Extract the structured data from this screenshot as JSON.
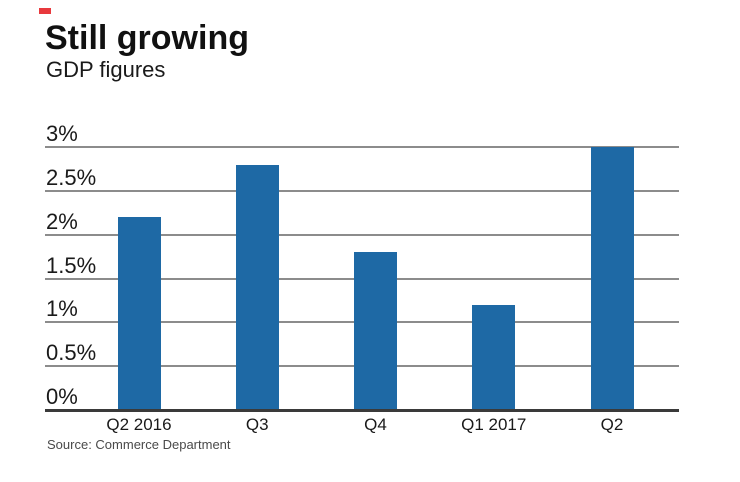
{
  "brand": {
    "accent_color": "#e8393d"
  },
  "header": {
    "title": "Still growing",
    "subtitle": "GDP figures"
  },
  "source_line": "Source: Commerce Department",
  "chart_data": {
    "type": "bar",
    "title": "Still growing",
    "subtitle": "GDP figures",
    "categories": [
      "Q2 2016",
      "Q3",
      "Q4",
      "Q1 2017",
      "Q2"
    ],
    "values": [
      2.2,
      2.8,
      1.8,
      1.2,
      3.0
    ],
    "unit": "percent",
    "ylim": [
      0,
      3
    ],
    "yticks": [
      0,
      0.5,
      1,
      1.5,
      2,
      2.5,
      3
    ],
    "ytick_labels": [
      "0%",
      "0.5%",
      "1%",
      "1.5%",
      "2%",
      "2.5%",
      "3%"
    ],
    "xlabel": "",
    "ylabel": "",
    "grid": true,
    "legend": false,
    "legend_position": "none",
    "bar_color": "#1e69a5",
    "gridline_color": "#8c8c8c",
    "axis_line_color": "#3a3a3a",
    "source": "Source: Commerce Department"
  }
}
